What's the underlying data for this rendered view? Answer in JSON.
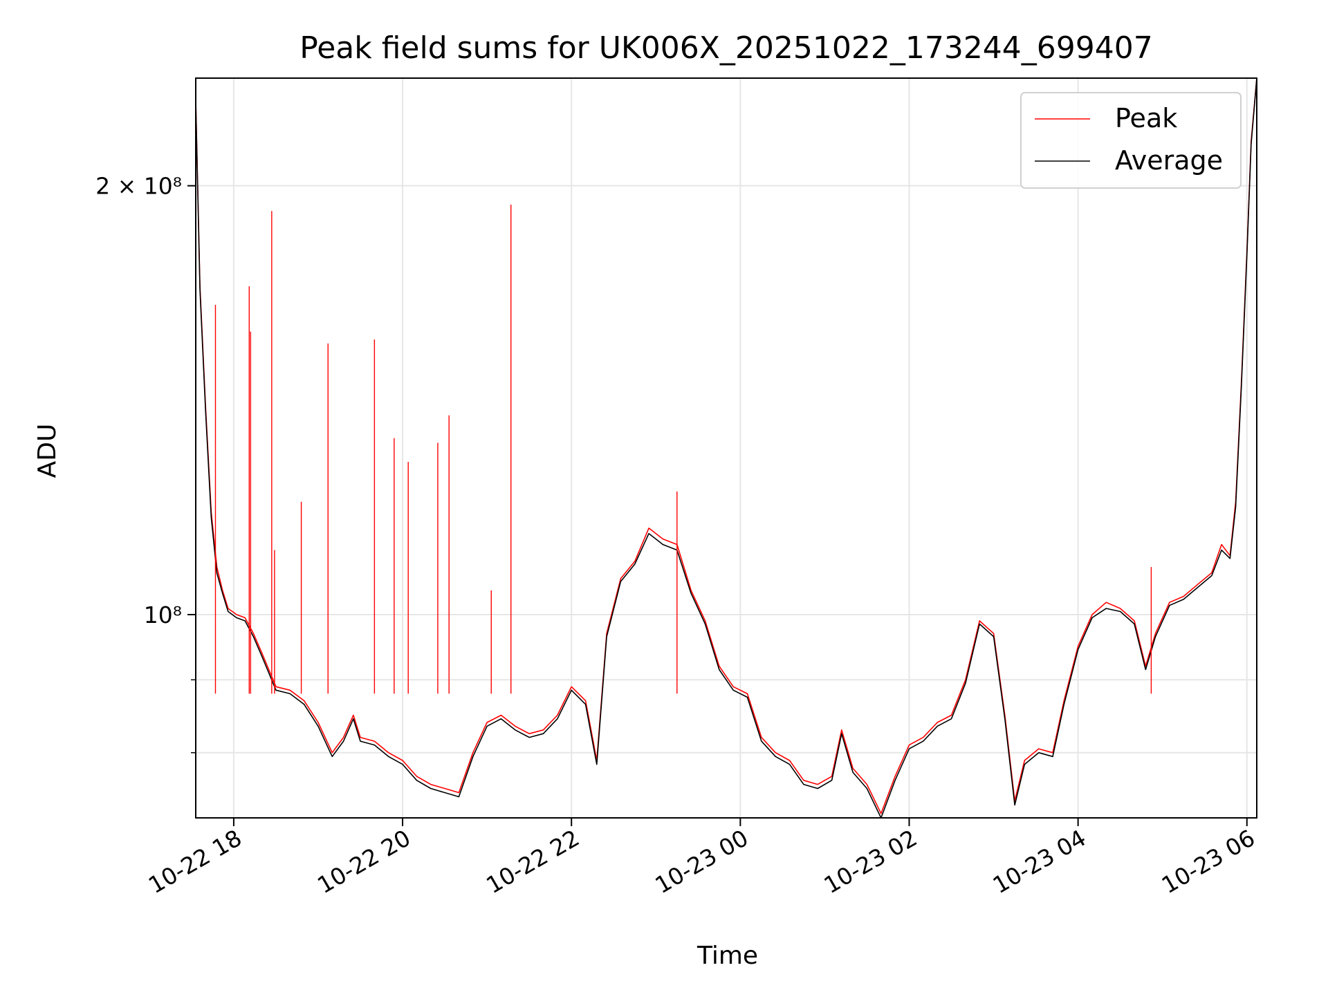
{
  "chart_data": {
    "type": "line",
    "title": "Peak field sums for UK006X_20251022_173244_699407",
    "xlabel": "Time",
    "ylabel": "ADU",
    "y_scale": "log",
    "x_range": [
      "10-22 17:33",
      "10-23 06:07"
    ],
    "ylim": [
      72000000,
      238000000
    ],
    "x_ticks": [
      {
        "t": "10-22 18:00",
        "label": "10-22 18"
      },
      {
        "t": "10-22 20:00",
        "label": "10-22 20"
      },
      {
        "t": "10-22 22:00",
        "label": "10-22 22"
      },
      {
        "t": "10-23 00:00",
        "label": "10-23 00"
      },
      {
        "t": "10-23 02:00",
        "label": "10-23 02"
      },
      {
        "t": "10-23 04:00",
        "label": "10-23 04"
      },
      {
        "t": "10-23 06:00",
        "label": "10-23 06"
      }
    ],
    "y_ticks": [
      {
        "v": 200000000,
        "label": "2 × 10⁸"
      },
      {
        "v": 100000000,
        "label": "10⁸"
      }
    ],
    "y_minor_ticks": [
      90000000,
      80000000
    ],
    "grid": true,
    "legend": "top-right",
    "series": [
      {
        "name": "Peak",
        "color": "#ff0000",
        "points": [
          [
            "10-22 17:33",
            230000000
          ],
          [
            "10-22 17:36",
            170000000
          ],
          [
            "10-22 17:40",
            140000000
          ],
          [
            "10-22 17:44",
            118000000
          ],
          [
            "10-22 17:48",
            108000000
          ],
          [
            "10-22 17:52",
            104000000
          ],
          [
            "10-22 17:56",
            101000000
          ],
          [
            "10-22 18:02",
            100000000
          ],
          [
            "10-22 18:08",
            99500000
          ],
          [
            "10-22 18:14",
            97000000
          ],
          [
            "10-22 18:20",
            94000000
          ],
          [
            "10-22 18:30",
            89000000
          ],
          [
            "10-22 18:40",
            88500000
          ],
          [
            "10-22 18:50",
            87000000
          ],
          [
            "10-22 19:00",
            84000000
          ],
          [
            "10-22 19:10",
            80000000
          ],
          [
            "10-22 19:18",
            82000000
          ],
          [
            "10-22 19:25",
            85000000
          ],
          [
            "10-22 19:30",
            82000000
          ],
          [
            "10-22 19:40",
            81500000
          ],
          [
            "10-22 19:50",
            80000000
          ],
          [
            "10-22 20:00",
            79000000
          ],
          [
            "10-22 20:10",
            77000000
          ],
          [
            "10-22 20:20",
            76000000
          ],
          [
            "10-22 20:30",
            75500000
          ],
          [
            "10-22 20:40",
            75000000
          ],
          [
            "10-22 20:50",
            80000000
          ],
          [
            "10-22 21:00",
            84000000
          ],
          [
            "10-22 21:10",
            85000000
          ],
          [
            "10-22 21:20",
            83500000
          ],
          [
            "10-22 21:30",
            82500000
          ],
          [
            "10-22 21:40",
            83000000
          ],
          [
            "10-22 21:50",
            85000000
          ],
          [
            "10-22 22:00",
            89000000
          ],
          [
            "10-22 22:10",
            87000000
          ],
          [
            "10-22 22:18",
            79000000
          ],
          [
            "10-22 22:25",
            97000000
          ],
          [
            "10-22 22:35",
            106000000
          ],
          [
            "10-22 22:45",
            109000000
          ],
          [
            "10-22 22:55",
            115000000
          ],
          [
            "10-22 23:05",
            113000000
          ],
          [
            "10-22 23:15",
            112000000
          ],
          [
            "10-22 23:25",
            104000000
          ],
          [
            "10-22 23:35",
            99000000
          ],
          [
            "10-22 23:45",
            92000000
          ],
          [
            "10-22 23:55",
            89000000
          ],
          [
            "10-23 00:05",
            88000000
          ],
          [
            "10-23 00:15",
            82000000
          ],
          [
            "10-23 00:25",
            80000000
          ],
          [
            "10-23 00:35",
            79000000
          ],
          [
            "10-23 00:45",
            76500000
          ],
          [
            "10-23 00:55",
            76000000
          ],
          [
            "10-23 01:05",
            77000000
          ],
          [
            "10-23 01:12",
            83000000
          ],
          [
            "10-23 01:20",
            78000000
          ],
          [
            "10-23 01:30",
            76000000
          ],
          [
            "10-23 01:40",
            72500000
          ],
          [
            "10-23 01:50",
            77000000
          ],
          [
            "10-23 02:00",
            81000000
          ],
          [
            "10-23 02:10",
            82000000
          ],
          [
            "10-23 02:20",
            84000000
          ],
          [
            "10-23 02:30",
            85000000
          ],
          [
            "10-23 02:40",
            90000000
          ],
          [
            "10-23 02:50",
            99000000
          ],
          [
            "10-23 03:00",
            97000000
          ],
          [
            "10-23 03:08",
            85000000
          ],
          [
            "10-23 03:15",
            74000000
          ],
          [
            "10-23 03:22",
            79000000
          ],
          [
            "10-23 03:32",
            80500000
          ],
          [
            "10-23 03:42",
            80000000
          ],
          [
            "10-23 03:50",
            87000000
          ],
          [
            "10-23 04:00",
            95000000
          ],
          [
            "10-23 04:10",
            100000000
          ],
          [
            "10-23 04:20",
            102000000
          ],
          [
            "10-23 04:30",
            101000000
          ],
          [
            "10-23 04:40",
            99000000
          ],
          [
            "10-23 04:48",
            92000000
          ],
          [
            "10-23 04:55",
            97000000
          ],
          [
            "10-23 05:05",
            102000000
          ],
          [
            "10-23 05:15",
            103000000
          ],
          [
            "10-23 05:25",
            105000000
          ],
          [
            "10-23 05:35",
            107000000
          ],
          [
            "10-23 05:42",
            112000000
          ],
          [
            "10-23 05:48",
            110000000
          ],
          [
            "10-23 05:52",
            120000000
          ],
          [
            "10-23 05:56",
            145000000
          ],
          [
            "10-23 06:00",
            180000000
          ],
          [
            "10-23 06:03",
            215000000
          ],
          [
            "10-23 06:07",
            238000000
          ]
        ]
      },
      {
        "name": "Average",
        "color": "#000000",
        "points": [
          [
            "10-22 17:33",
            229000000
          ],
          [
            "10-22 17:36",
            169000000
          ],
          [
            "10-22 17:40",
            139000000
          ],
          [
            "10-22 17:44",
            117000000
          ],
          [
            "10-22 17:48",
            107000000
          ],
          [
            "10-22 17:52",
            103500000
          ],
          [
            "10-22 17:56",
            100500000
          ],
          [
            "10-22 18:02",
            99500000
          ],
          [
            "10-22 18:08",
            99000000
          ],
          [
            "10-22 18:14",
            96500000
          ],
          [
            "10-22 18:20",
            93500000
          ],
          [
            "10-22 18:30",
            88500000
          ],
          [
            "10-22 18:40",
            88000000
          ],
          [
            "10-22 18:50",
            86500000
          ],
          [
            "10-22 19:00",
            83500000
          ],
          [
            "10-22 19:10",
            79500000
          ],
          [
            "10-22 19:18",
            81500000
          ],
          [
            "10-22 19:25",
            84500000
          ],
          [
            "10-22 19:30",
            81500000
          ],
          [
            "10-22 19:40",
            81000000
          ],
          [
            "10-22 19:50",
            79500000
          ],
          [
            "10-22 20:00",
            78500000
          ],
          [
            "10-22 20:10",
            76500000
          ],
          [
            "10-22 20:20",
            75500000
          ],
          [
            "10-22 20:30",
            75000000
          ],
          [
            "10-22 20:40",
            74500000
          ],
          [
            "10-22 20:50",
            79500000
          ],
          [
            "10-22 21:00",
            83500000
          ],
          [
            "10-22 21:10",
            84500000
          ],
          [
            "10-22 21:20",
            83000000
          ],
          [
            "10-22 21:30",
            82000000
          ],
          [
            "10-22 21:40",
            82500000
          ],
          [
            "10-22 21:50",
            84500000
          ],
          [
            "10-22 22:00",
            88500000
          ],
          [
            "10-22 22:10",
            86500000
          ],
          [
            "10-22 22:18",
            78500000
          ],
          [
            "10-22 22:25",
            96500000
          ],
          [
            "10-22 22:35",
            105500000
          ],
          [
            "10-22 22:45",
            108500000
          ],
          [
            "10-22 22:55",
            114000000
          ],
          [
            "10-22 23:05",
            112000000
          ],
          [
            "10-22 23:15",
            111000000
          ],
          [
            "10-22 23:25",
            103500000
          ],
          [
            "10-22 23:35",
            98500000
          ],
          [
            "10-22 23:45",
            91500000
          ],
          [
            "10-22 23:55",
            88500000
          ],
          [
            "10-23 00:05",
            87500000
          ],
          [
            "10-23 00:15",
            81500000
          ],
          [
            "10-23 00:25",
            79500000
          ],
          [
            "10-23 00:35",
            78500000
          ],
          [
            "10-23 00:45",
            76000000
          ],
          [
            "10-23 00:55",
            75500000
          ],
          [
            "10-23 01:05",
            76500000
          ],
          [
            "10-23 01:12",
            82500000
          ],
          [
            "10-23 01:20",
            77500000
          ],
          [
            "10-23 01:30",
            75500000
          ],
          [
            "10-23 01:40",
            72000000
          ],
          [
            "10-23 01:50",
            76500000
          ],
          [
            "10-23 02:00",
            80500000
          ],
          [
            "10-23 02:10",
            81500000
          ],
          [
            "10-23 02:20",
            83500000
          ],
          [
            "10-23 02:30",
            84500000
          ],
          [
            "10-23 02:40",
            89500000
          ],
          [
            "10-23 02:50",
            98500000
          ],
          [
            "10-23 03:00",
            96500000
          ],
          [
            "10-23 03:08",
            84500000
          ],
          [
            "10-23 03:15",
            73500000
          ],
          [
            "10-23 03:22",
            78500000
          ],
          [
            "10-23 03:32",
            80000000
          ],
          [
            "10-23 03:42",
            79500000
          ],
          [
            "10-23 03:50",
            86500000
          ],
          [
            "10-23 04:00",
            94500000
          ],
          [
            "10-23 04:10",
            99500000
          ],
          [
            "10-23 04:20",
            101000000
          ],
          [
            "10-23 04:30",
            100500000
          ],
          [
            "10-23 04:40",
            98500000
          ],
          [
            "10-23 04:48",
            91500000
          ],
          [
            "10-23 04:55",
            96500000
          ],
          [
            "10-23 05:05",
            101500000
          ],
          [
            "10-23 05:15",
            102500000
          ],
          [
            "10-23 05:25",
            104500000
          ],
          [
            "10-23 05:35",
            106500000
          ],
          [
            "10-23 05:42",
            111000000
          ],
          [
            "10-23 05:48",
            109500000
          ],
          [
            "10-23 05:52",
            119000000
          ],
          [
            "10-23 05:56",
            144000000
          ],
          [
            "10-23 06:00",
            179000000
          ],
          [
            "10-23 06:03",
            214000000
          ],
          [
            "10-23 06:07",
            238000000
          ]
        ]
      }
    ],
    "spikes": {
      "series": "Peak",
      "points": [
        [
          "10-22 17:47",
          165000000
        ],
        [
          "10-22 18:11",
          170000000
        ],
        [
          "10-22 18:12",
          158000000
        ],
        [
          "10-22 18:27",
          192000000
        ],
        [
          "10-22 18:29",
          111000000
        ],
        [
          "10-22 18:48",
          120000000
        ],
        [
          "10-22 19:07",
          155000000
        ],
        [
          "10-22 19:40",
          156000000
        ],
        [
          "10-22 19:54",
          133000000
        ],
        [
          "10-22 20:04",
          128000000
        ],
        [
          "10-22 20:25",
          132000000
        ],
        [
          "10-22 20:33",
          138000000
        ],
        [
          "10-22 21:03",
          104000000
        ],
        [
          "10-22 21:17",
          194000000
        ],
        [
          "10-22 23:15",
          122000000
        ],
        [
          "10-23 04:52",
          108000000
        ]
      ]
    }
  }
}
